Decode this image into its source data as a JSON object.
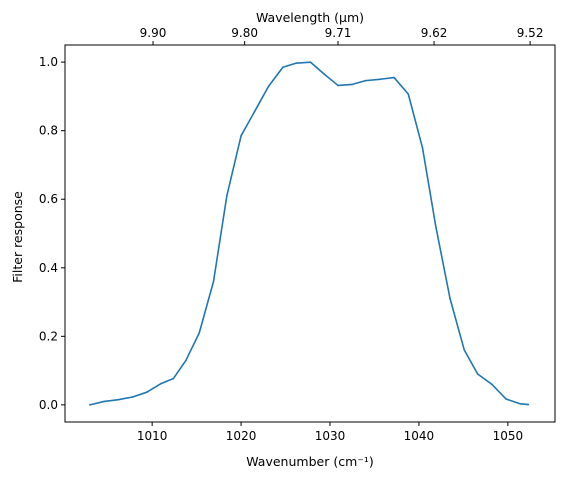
{
  "chart_data": {
    "type": "line",
    "xlabel": "Wavenumber (cm⁻¹)",
    "ylabel": "Filter response",
    "top_xlabel": "Wavelength (μm)",
    "xlim": [
      1000.2,
      1055.3
    ],
    "ylim": [
      -0.05,
      1.05
    ],
    "x_ticks": [
      1010,
      1020,
      1030,
      1040,
      1050
    ],
    "x_tick_labels": [
      "1010",
      "1020",
      "1030",
      "1040",
      "1050"
    ],
    "y_ticks": [
      0.0,
      0.2,
      0.4,
      0.6,
      0.8,
      1.0
    ],
    "y_tick_labels": [
      "0.0",
      "0.2",
      "0.4",
      "0.6",
      "0.8",
      "1.0"
    ],
    "top_ticks": [
      1010.1,
      1020.4,
      1030.9,
      1041.7,
      1052.5
    ],
    "top_tick_labels": [
      "9.90",
      "9.80",
      "9.71",
      "9.62",
      "9.52"
    ],
    "grid": false,
    "line_color": "#1f77b4",
    "series": [
      {
        "x": [
          1003.0,
          1004.6,
          1006.2,
          1007.8,
          1009.4,
          1011.0,
          1012.4,
          1013.8,
          1015.3,
          1016.9,
          1018.4,
          1020.0,
          1021.5,
          1023.1,
          1024.7,
          1026.2,
          1027.8,
          1029.3,
          1030.9,
          1032.5,
          1034.0,
          1035.6,
          1037.2,
          1038.8,
          1040.4,
          1041.9,
          1043.5,
          1045.1,
          1046.6,
          1048.2,
          1049.8,
          1051.4,
          1052.3
        ],
        "y": [
          0.0,
          0.01,
          0.015,
          0.023,
          0.037,
          0.062,
          0.077,
          0.13,
          0.21,
          0.36,
          0.61,
          0.785,
          0.855,
          0.93,
          0.985,
          0.997,
          1.0,
          0.966,
          0.932,
          0.935,
          0.946,
          0.95,
          0.955,
          0.907,
          0.75,
          0.52,
          0.31,
          0.16,
          0.09,
          0.06,
          0.017,
          0.003,
          0.001
        ]
      }
    ]
  }
}
